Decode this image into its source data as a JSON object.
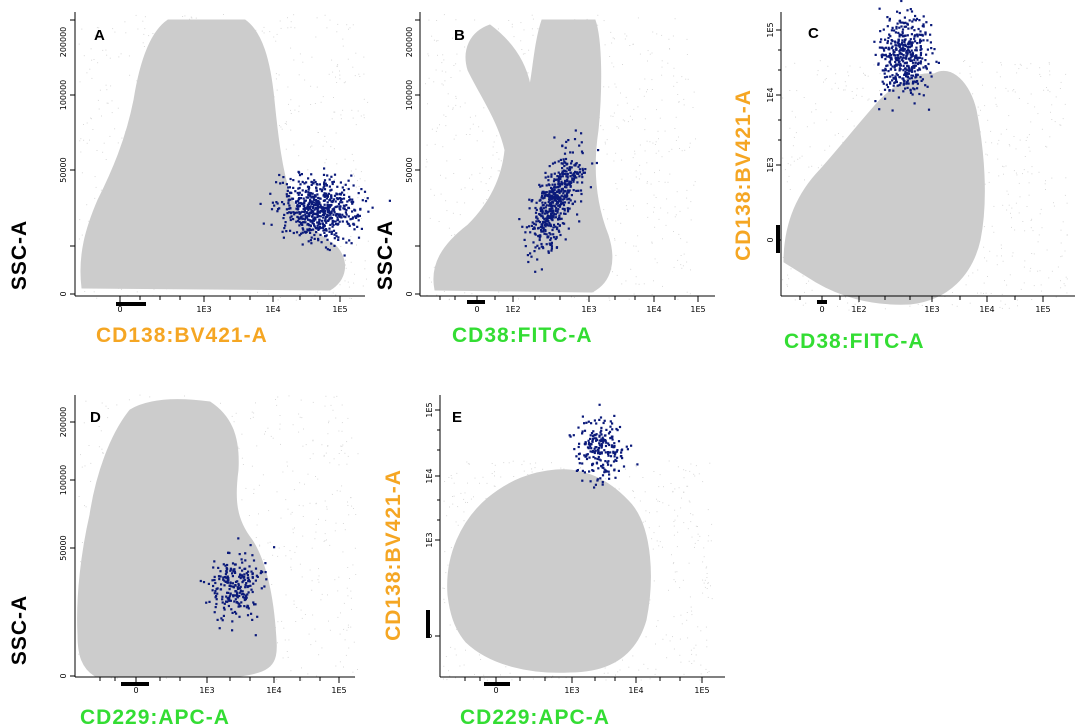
{
  "colors": {
    "background_events": "#cccccc",
    "gated_events": "#0b1a7a",
    "axis": "#000000",
    "orange_label": "#f5a623",
    "green_label": "#33dd33",
    "black_label": "#000000"
  },
  "chart_data": [
    {
      "type": "scatter",
      "panel": "A",
      "xlabel": "CD138:BV421-A",
      "xlabel_color": "orange",
      "ylabel": "SSC-A",
      "ylabel_color": "black",
      "x_scale": "biexponential",
      "y_scale": "linear",
      "x_ticks": [
        "0",
        "1E3",
        "1E4",
        "1E5"
      ],
      "y_ticks": [
        "0",
        "50000",
        "100000",
        "200000"
      ],
      "series": [
        {
          "name": "all events",
          "color": "gray"
        },
        {
          "name": "gated plasma cells",
          "color": "navy",
          "x_center": "5E4",
          "y_center": 35000
        }
      ]
    },
    {
      "type": "scatter",
      "panel": "B",
      "xlabel": "CD38:FITC-A",
      "xlabel_color": "green",
      "ylabel": "SSC-A",
      "ylabel_color": "black",
      "x_scale": "biexponential",
      "y_scale": "linear",
      "x_ticks": [
        "0",
        "1E2",
        "1E3",
        "1E4",
        "1E5"
      ],
      "y_ticks": [
        "0",
        "50000",
        "100000",
        "200000"
      ],
      "series": [
        {
          "name": "all events",
          "color": "gray"
        },
        {
          "name": "gated plasma cells",
          "color": "navy",
          "x_center": "5E2",
          "y_center": 35000
        }
      ]
    },
    {
      "type": "scatter",
      "panel": "C",
      "xlabel": "CD38:FITC-A",
      "xlabel_color": "green",
      "ylabel": "CD138:BV421-A",
      "ylabel_color": "orange",
      "x_scale": "biexponential",
      "y_scale": "biexponential",
      "x_ticks": [
        "0",
        "1E2",
        "1E3",
        "1E4",
        "1E5"
      ],
      "y_ticks": [
        "0",
        "1E3",
        "1E4",
        "1E5"
      ],
      "series": [
        {
          "name": "all events",
          "color": "gray"
        },
        {
          "name": "gated plasma cells",
          "color": "navy",
          "x_center": "5E2",
          "y_center": "4E4"
        }
      ]
    },
    {
      "type": "scatter",
      "panel": "D",
      "xlabel": "CD229:APC-A",
      "xlabel_color": "green",
      "ylabel": "SSC-A",
      "ylabel_color": "black",
      "x_scale": "biexponential",
      "y_scale": "linear",
      "x_ticks": [
        "0",
        "1E3",
        "1E4",
        "1E5"
      ],
      "y_ticks": [
        "0",
        "50000",
        "100000",
        "200000"
      ],
      "series": [
        {
          "name": "all events",
          "color": "gray"
        },
        {
          "name": "gated plasma cells",
          "color": "navy",
          "x_center": "3E3",
          "y_center": 32000
        }
      ]
    },
    {
      "type": "scatter",
      "panel": "E",
      "xlabel": "CD229:APC-A",
      "xlabel_color": "green",
      "ylabel": "CD138:BV421-A",
      "ylabel_color": "orange",
      "x_scale": "biexponential",
      "y_scale": "biexponential",
      "x_ticks": [
        "0",
        "1E3",
        "1E4",
        "1E5"
      ],
      "y_ticks": [
        "0",
        "1E3",
        "1E4",
        "1E5"
      ],
      "series": [
        {
          "name": "all events",
          "color": "gray"
        },
        {
          "name": "gated plasma cells",
          "color": "navy",
          "x_center": "3E3",
          "y_center": "4E4"
        }
      ]
    }
  ]
}
